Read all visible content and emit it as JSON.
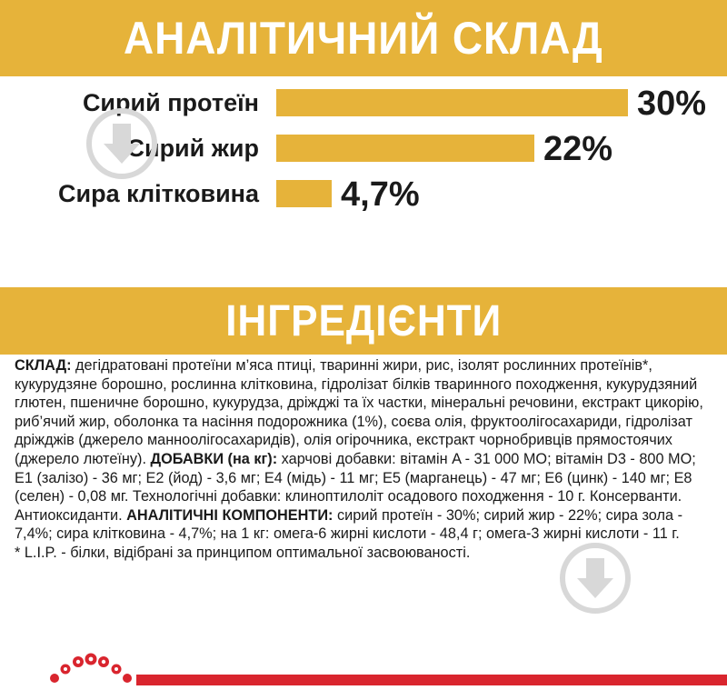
{
  "analytical": {
    "title": "АНАЛІТИЧНИЙ СКЛАД",
    "rows": [
      {
        "label": "Сирий протеїн",
        "value_text": "30%",
        "value": 30
      },
      {
        "label": "Сирий жир",
        "value_text": "22%",
        "value": 22
      },
      {
        "label": "Сира клітковина",
        "value_text": "4,7%",
        "value": 4.7
      }
    ]
  },
  "ingredients": {
    "title": "ІНГРЕДІЄНТИ",
    "composition_label": "СКЛАД:",
    "composition_text": " дегідратовані протеїни м’яса птиці, тваринні жири, рис, ізолят рослинних протеїнів*, кукурудзяне борошно, рослинна клітковина, гідролізат білків тваринного походження, кукурудзяний глютен, пшеничне борошно, кукурудза, дріжджі та їх частки, мінеральні речовини, екстракт цикорію, риб’ячий жир, оболонка та насіння подорожника (1%), соєва олія, фруктоолігосахариди, гідролізат дріжджів (джерело манноолігосахаридів), олія огірочника, екстракт чорнобривців прямостоячих (джерело лютеїну). ",
    "additives_label": "ДОБАВКИ (на кг):",
    "additives_text": " харчові добавки: вітамін A - 31 000 МО; вітамін D3 - 800 МО; E1 (залізо) - 36 мг; E2 (йод) - 3,6 мг; E4 (мідь) - 11 мг; E5 (марганець) - 47 мг; E6 (цинк) - 140 мг; E8 (селен) - 0,08 мг. Технологічні добавки: клиноптилоліт осадового походження - 10 г. Консерванти. Антиоксиданти. ",
    "analytical_label": "АНАЛІТИЧНІ КОМПОНЕНТИ:",
    "analytical_text": " сирий протеїн - 30%; сирий жир - 22%; сира зола - 7,4%; сира клітковина - 4,7%; на 1 кг: омега-6 жирні кислоти - 48,4 г; омега-3 жирні кислоти - 11 г.",
    "footnote": "* L.I.P. - білки, відібрані за принципом оптимальної засвоюваності."
  },
  "colors": {
    "accent": "#e6b33a",
    "brand_red": "#d9252e",
    "text": "#1a1a1a"
  },
  "icons": {
    "watermarks": [
      "arrow-down-icon",
      "arrow-down-icon"
    ],
    "logo": "royal-canin-crown-icon"
  }
}
